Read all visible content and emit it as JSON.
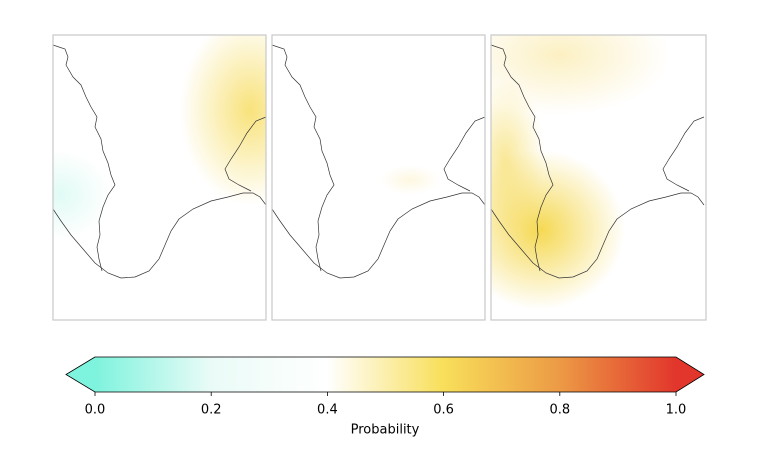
{
  "chart_data": {
    "type": "colorbar",
    "xlabel": "Probability",
    "xlim": [
      0,
      1
    ],
    "xticks": [
      {
        "value": 0,
        "label": "0.0"
      },
      0.2,
      0.4,
      0.6,
      0.8,
      {
        "value": 1,
        "label": "1.0"
      }
    ],
    "colors": [
      "#7ef3dd",
      "#eafbf7",
      "#ffffff",
      "#f8df5a",
      "#ec9a45",
      "#e2362c"
    ]
  }
}
